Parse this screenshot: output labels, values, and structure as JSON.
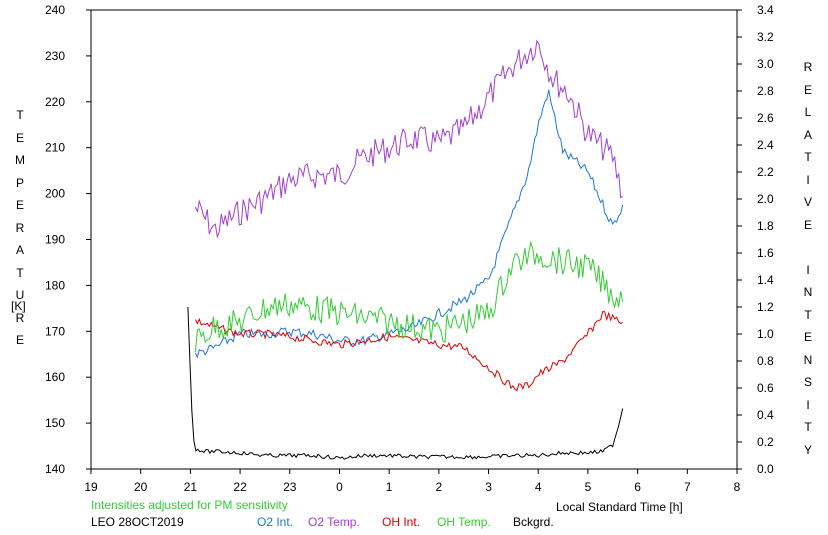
{
  "chart_data": {
    "type": "line",
    "title": "",
    "xlabel": "Local Standard Time [h]",
    "ylabel_left": "TEMPERATURE",
    "ylabel_left_unit": "[K]",
    "ylabel_right": "RELATIVE INTENSITY",
    "x_ticks": [
      "19",
      "20",
      "21",
      "22",
      "23",
      "0",
      "1",
      "2",
      "3",
      "4",
      "5",
      "6",
      "7",
      "8"
    ],
    "x_range": [
      19,
      32
    ],
    "ylim_left": [
      140,
      240
    ],
    "y_ticks_left": [
      "140",
      "150",
      "160",
      "170",
      "180",
      "190",
      "200",
      "210",
      "220",
      "230",
      "240"
    ],
    "ylim_right": [
      0.0,
      3.4
    ],
    "y_ticks_right": [
      "0.0",
      "0.2",
      "0.4",
      "0.6",
      "0.8",
      "1.0",
      "1.2",
      "1.4",
      "1.6",
      "1.8",
      "2.0",
      "2.2",
      "2.4",
      "2.6",
      "2.8",
      "3.0",
      "3.2",
      "3.4"
    ],
    "grid": false,
    "annotation": "Intensities adjusted for PM sensitivity",
    "station_label": "LEO 28OCT2019",
    "legend": [
      {
        "name": "O2 Int.",
        "color": "#1f77d4"
      },
      {
        "name": "O2 Temp.",
        "color": "#a040d0"
      },
      {
        "name": "OH Int.",
        "color": "#e00000"
      },
      {
        "name": "OH Temp.",
        "color": "#33cc33"
      },
      {
        "name": "Bckgrd.",
        "color": "#000000"
      }
    ],
    "series": [
      {
        "name": "O2 Temp.",
        "axis": "left",
        "color": "#a040d0",
        "x": [
          21.1,
          21.5,
          22.0,
          22.5,
          23.0,
          23.5,
          24.0,
          24.5,
          25.0,
          25.5,
          26.0,
          26.5,
          27.0,
          27.5,
          28.0,
          28.3,
          28.6,
          29.0,
          29.5,
          29.7
        ],
        "y": [
          197,
          192,
          196,
          199,
          203,
          204,
          204,
          208,
          210,
          212,
          211,
          214,
          221,
          228,
          233,
          225,
          222,
          213,
          208,
          200
        ]
      },
      {
        "name": "O2 Int.",
        "axis": "right",
        "color": "#1f77d4",
        "x": [
          21.1,
          21.5,
          22.0,
          22.5,
          23.0,
          23.5,
          24.0,
          24.5,
          25.0,
          25.5,
          26.0,
          26.5,
          27.0,
          27.5,
          27.8,
          28.0,
          28.2,
          28.5,
          29.0,
          29.5,
          29.7
        ],
        "y": [
          0.85,
          0.9,
          1.0,
          1.0,
          1.02,
          1.0,
          0.95,
          0.95,
          1.0,
          1.05,
          1.15,
          1.25,
          1.4,
          1.9,
          2.2,
          2.55,
          2.8,
          2.35,
          2.2,
          1.8,
          1.95
        ]
      },
      {
        "name": "OH Int.",
        "axis": "right",
        "color": "#e00000",
        "x": [
          21.1,
          21.5,
          22.0,
          22.5,
          23.0,
          23.5,
          24.0,
          24.5,
          25.0,
          25.5,
          26.0,
          26.5,
          27.0,
          27.5,
          27.8,
          28.0,
          28.5,
          29.0,
          29.3,
          29.7
        ],
        "y": [
          1.1,
          1.05,
          1.0,
          1.0,
          0.98,
          0.95,
          0.92,
          0.95,
          0.98,
          0.95,
          0.92,
          0.9,
          0.75,
          0.6,
          0.62,
          0.7,
          0.8,
          1.0,
          1.15,
          1.08
        ]
      },
      {
        "name": "OH Temp.",
        "axis": "left",
        "color": "#33cc33",
        "x": [
          21.1,
          21.5,
          22.0,
          22.5,
          23.0,
          23.5,
          24.0,
          24.5,
          25.0,
          25.5,
          26.0,
          26.5,
          27.0,
          27.5,
          28.0,
          28.5,
          29.0,
          29.5,
          29.7
        ],
        "y": [
          168,
          171,
          172,
          175,
          176,
          175,
          174,
          173,
          172,
          171,
          170,
          172,
          174,
          185,
          187,
          185,
          184,
          178,
          177
        ]
      },
      {
        "name": "Bckgrd.",
        "axis": "right",
        "color": "#000000",
        "x": [
          20.95,
          21.0,
          21.05,
          21.1,
          21.3,
          21.5,
          22.0,
          22.5,
          23.0,
          23.5,
          24.0,
          24.5,
          25.0,
          25.5,
          26.0,
          26.5,
          27.0,
          27.5,
          28.0,
          28.5,
          29.0,
          29.3,
          29.5,
          29.6,
          29.7
        ],
        "y": [
          1.2,
          0.7,
          0.25,
          0.15,
          0.13,
          0.13,
          0.12,
          0.1,
          0.1,
          0.1,
          0.08,
          0.1,
          0.1,
          0.09,
          0.09,
          0.09,
          0.09,
          0.1,
          0.1,
          0.12,
          0.12,
          0.13,
          0.18,
          0.3,
          0.45
        ]
      }
    ]
  }
}
